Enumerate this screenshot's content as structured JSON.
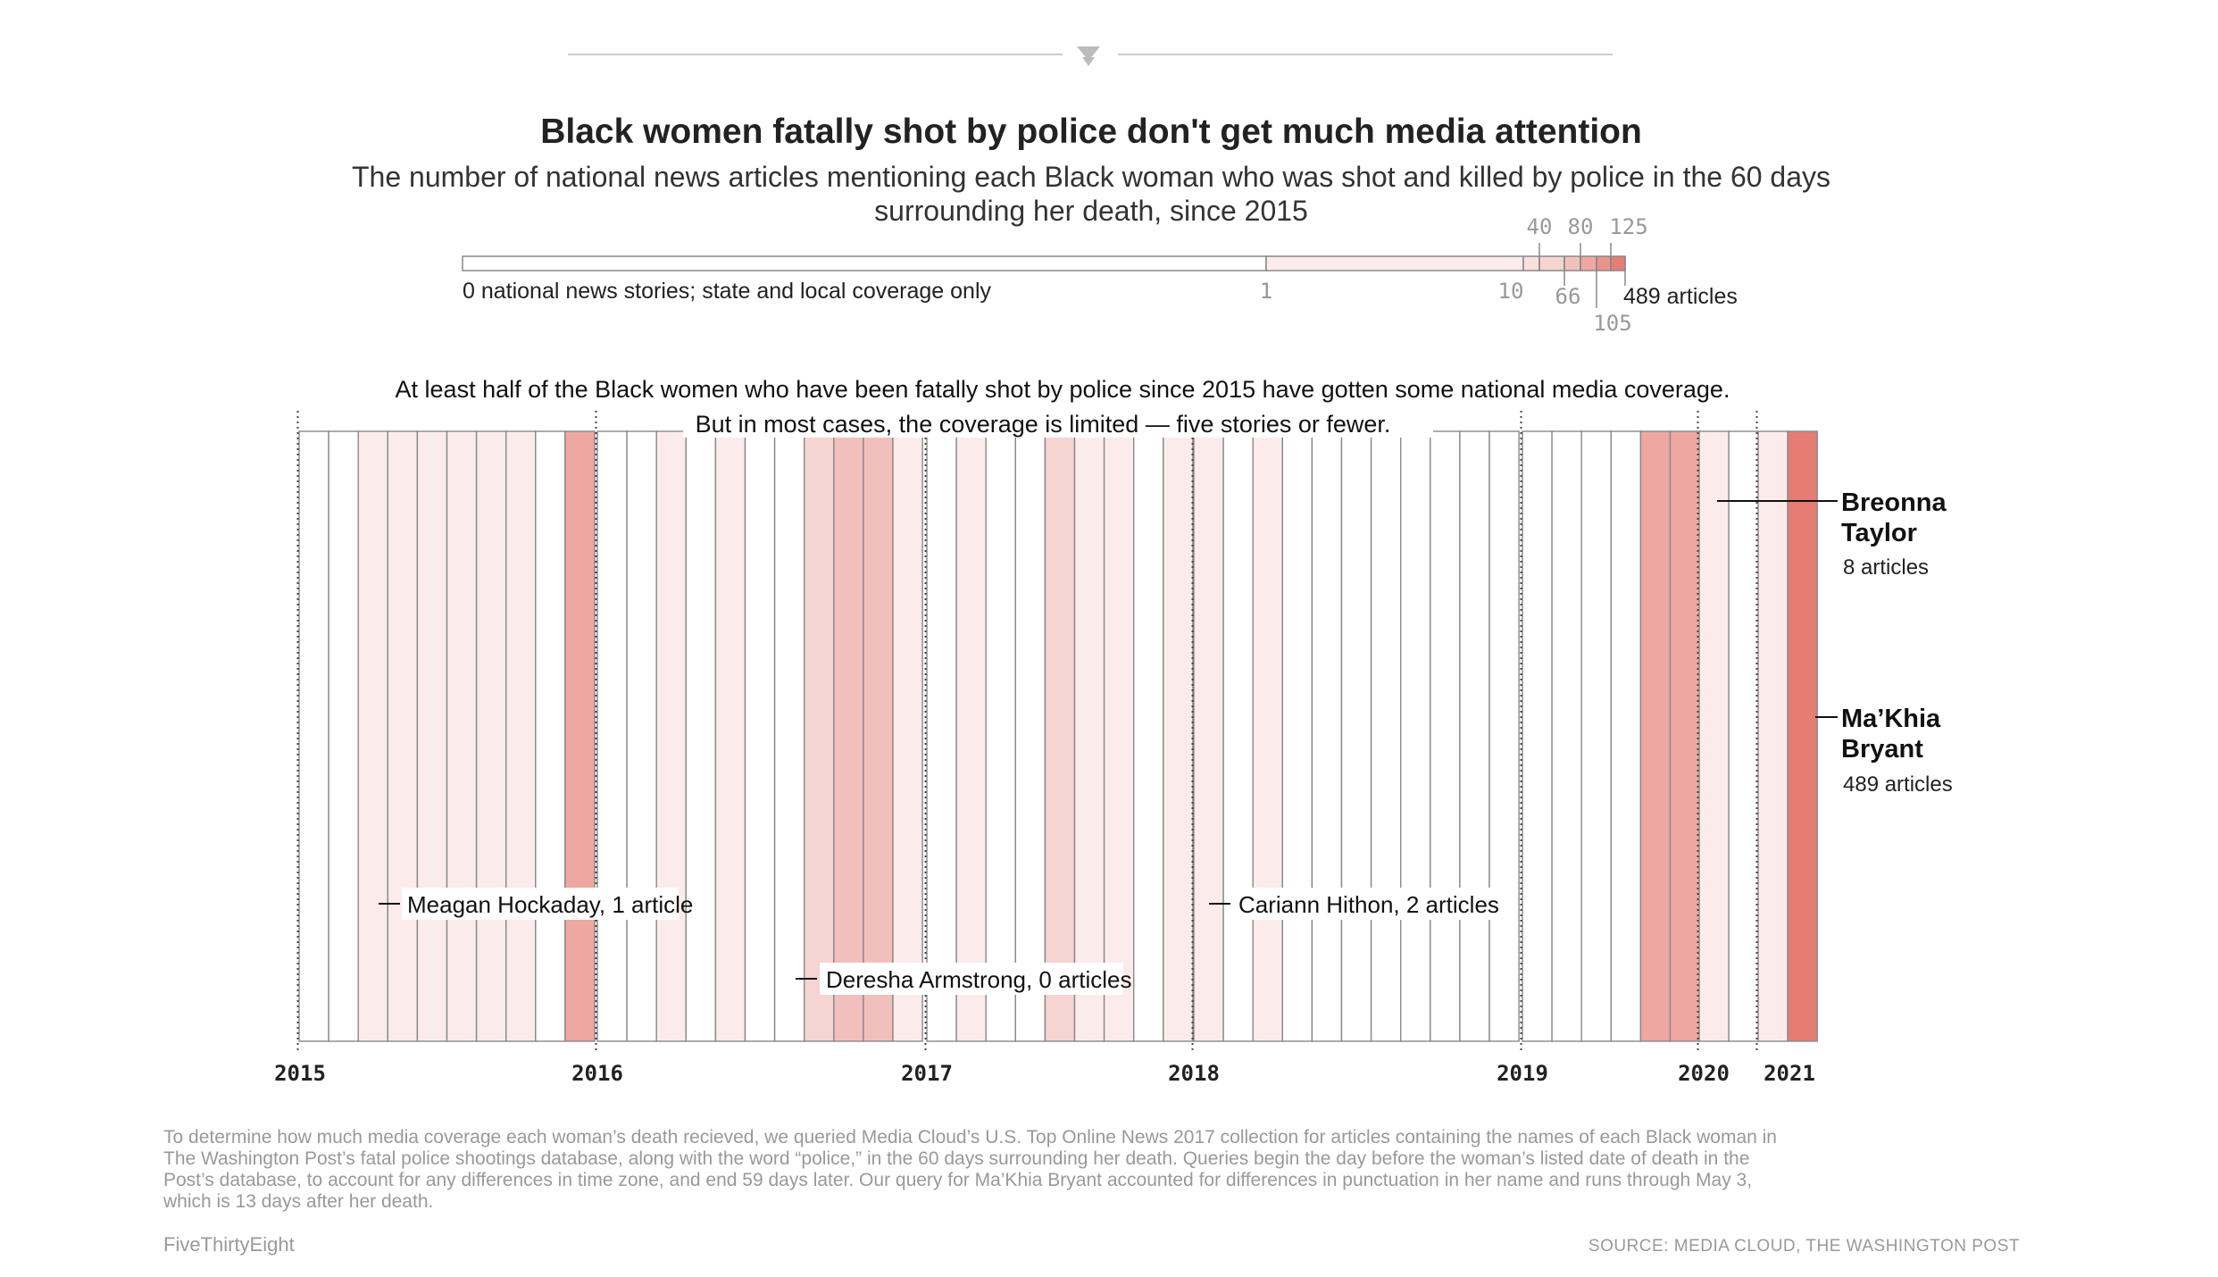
{
  "header": {
    "title": "Black women fatally shot by police don't get much media attention",
    "subtitle_line1": "The number of national news articles mentioning each Black woman who was shot and killed by police in the 60 days",
    "subtitle_line2": "surrounding her death, since 2015"
  },
  "legend": {
    "zero_label": "0 national news stories; state and local coverage only",
    "one_label": "1",
    "ten_label": "10",
    "forty_label": "40",
    "sixtysix_label": "66",
    "eighty_label": "80",
    "onehundredfive_label": "105",
    "onetwentyfive_label": "125",
    "max_label": "489 articles"
  },
  "annotation": {
    "line1": "At least half of the Black women who have been fatally shot by police since 2015 have gotten some national media coverage.",
    "line2": "But in most cases, the coverage is limited — five stories or fewer."
  },
  "callouts": {
    "hockaday": "Meagan Hockaday, 1 article",
    "armstrong": "Deresha Armstrong, 0 articles",
    "hithon": "Cariann Hithon, 2 articles",
    "taylor_name_1": "Breonna",
    "taylor_name_2": "Taylor",
    "taylor_count": "8 articles",
    "bryant_name_1": "Ma’Khia",
    "bryant_name_2": "Bryant",
    "bryant_count": "489 articles"
  },
  "years": [
    "2015",
    "2016",
    "2017",
    "2018",
    "2019",
    "2020",
    "2021"
  ],
  "footer": {
    "note_line1": "To determine how much media coverage each woman’s death recieved, we queried Media Cloud’s U.S. Top Online News 2017 collection for articles containing the names of each Black woman in",
    "note_line2": "The Washington Post’s fatal police shootings database, along with the word “police,” in the 60 days surrounding her death. Queries begin the day before the woman’s listed date of death in the",
    "note_line3": "Post’s database, to account for any differences in time zone, and end 59 days later. Our query for Ma’Khia Bryant accounted for differences in punctuation in her name and runs through May 3,",
    "note_line4": "which is 13 days after her death.",
    "brand": "FiveThirtyEight",
    "source": "SOURCE: MEDIA CLOUD, THE WASHINGTON POST"
  },
  "colors": {
    "zero": "#ffffff",
    "bin_1_9": "#fbeceb",
    "bin_10_39": "#f6d4d1",
    "bin_40_79": "#f2c0bc",
    "bin_80_124": "#efa7a2",
    "bin_125_plus": "#e67d74",
    "stroke": "#888888"
  },
  "chart_data": {
    "type": "heatmap",
    "title": "Black women fatally shot by police don't get much media attention",
    "value_label": "national news articles",
    "scale_breaks": [
      0,
      1,
      10,
      40,
      66,
      80,
      105,
      125,
      489
    ],
    "year_ticks": [
      "2015",
      "2016",
      "2017",
      "2018",
      "2019",
      "2020",
      "2021"
    ],
    "segments": [
      {
        "start_year": "2015",
        "count": 10,
        "values": [
          0,
          0,
          2,
          2,
          2,
          2,
          2,
          2,
          0,
          100
        ]
      },
      {
        "start_year": "2016",
        "count": 11,
        "values": [
          0,
          0,
          2,
          0,
          2,
          0,
          0,
          20,
          40,
          40,
          2
        ]
      },
      {
        "start_year": "2017",
        "count": 9,
        "values": [
          0,
          2,
          0,
          0,
          20,
          2,
          2,
          0,
          2
        ]
      },
      {
        "start_year": "2018",
        "count": 11,
        "values": [
          2,
          0,
          2,
          0,
          0,
          0,
          0,
          0,
          0,
          0,
          0
        ]
      },
      {
        "start_year": "2019",
        "count": 6,
        "values": [
          0,
          0,
          0,
          0,
          100,
          80
        ]
      },
      {
        "start_year": "2020",
        "count": 2,
        "values": [
          8,
          0
        ]
      },
      {
        "start_year": "2021",
        "count": 2,
        "values": [
          2,
          489
        ]
      }
    ]
  }
}
